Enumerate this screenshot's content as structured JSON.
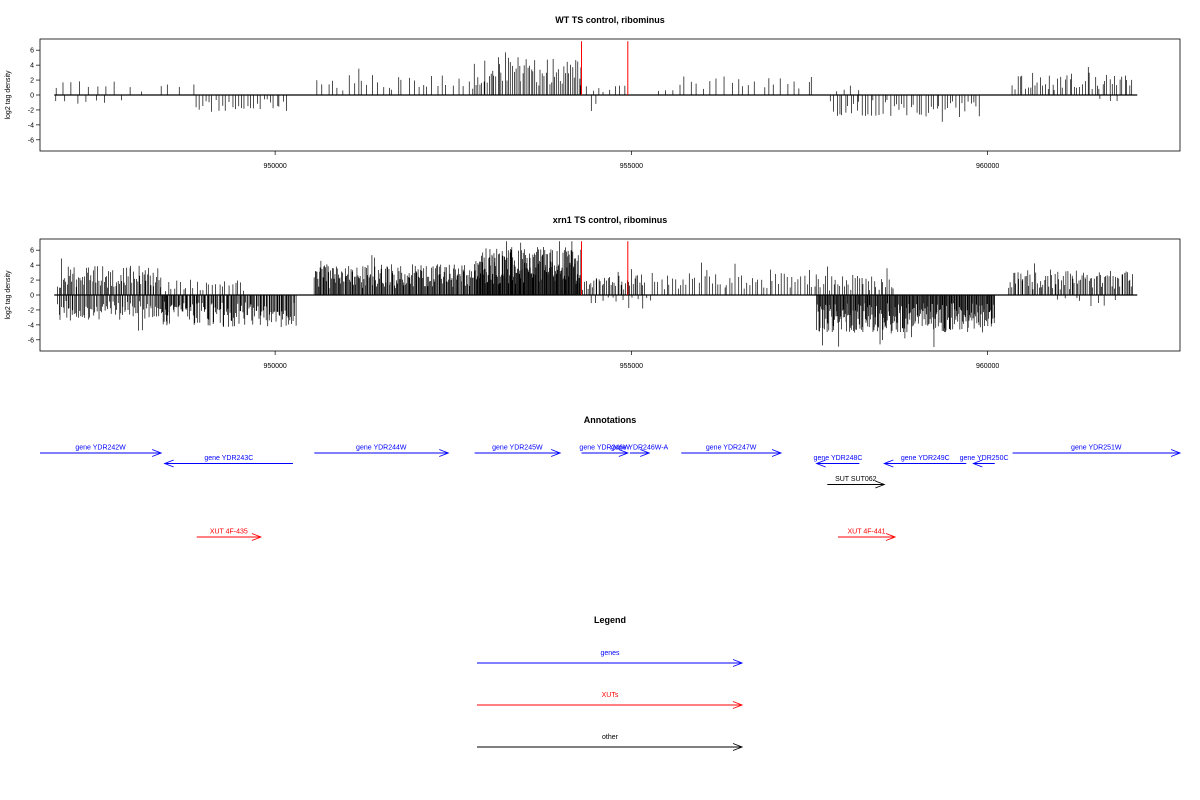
{
  "colors": {
    "genes": "#0000ff",
    "xuts": "#ff0000",
    "other": "#000000",
    "marker": "#ff0000"
  },
  "chart_data": [
    {
      "type": "bar",
      "title": "WT TS control, ribominus",
      "ylabel": "log2 tag density",
      "xlim": [
        946700,
        962700
      ],
      "ylim": [
        -7.5,
        7.5
      ],
      "xticks": [
        950000,
        955000,
        960000
      ],
      "xtick_labels": [
        "950000",
        "955000",
        "960000"
      ],
      "yticks": [
        -6,
        -4,
        -2,
        0,
        2,
        4,
        6
      ],
      "ytick_labels": [
        "-6",
        "-4",
        "-2",
        "0",
        "2",
        "4",
        "6"
      ],
      "baseline": [
        946900,
        962100
      ],
      "marker_lines": [
        954300,
        954950
      ],
      "marker_top": 7.2,
      "density_regions": [
        {
          "start": 946950,
          "end": 947800,
          "sign": 1,
          "step": 110,
          "amp": 1.9,
          "seed": 11
        },
        {
          "start": 946950,
          "end": 947900,
          "sign": -1,
          "step": 140,
          "amp": 1.4,
          "seed": 12
        },
        {
          "start": 948000,
          "end": 949000,
          "sign": 1,
          "step": 170,
          "amp": 1.6,
          "seed": 13
        },
        {
          "start": 948900,
          "end": 950200,
          "sign": -1,
          "step": 45,
          "amp": 2.2,
          "seed": 14
        },
        {
          "start": 950600,
          "end": 952800,
          "sign": 1,
          "step": 70,
          "amp": 2.4,
          "seed": 15
        },
        {
          "start": 952800,
          "end": 954300,
          "sign": 1,
          "step": 25,
          "amp": 4.6,
          "seed": 16
        },
        {
          "start": 954300,
          "end": 955000,
          "sign": 1,
          "step": 80,
          "amp": 1.3,
          "seed": 17
        },
        {
          "start": 954450,
          "end": 954550,
          "sign": -1,
          "step": 60,
          "amp": 2.0,
          "seed": 18
        },
        {
          "start": 955400,
          "end": 957600,
          "sign": 1,
          "step": 90,
          "amp": 2.2,
          "seed": 19
        },
        {
          "start": 957800,
          "end": 959900,
          "sign": -1,
          "step": 40,
          "amp": 2.5,
          "seed": 20
        },
        {
          "start": 957900,
          "end": 958200,
          "sign": 1,
          "step": 90,
          "amp": 1.2,
          "seed": 21
        },
        {
          "start": 960350,
          "end": 962050,
          "sign": 1,
          "step": 35,
          "amp": 2.6,
          "seed": 22
        },
        {
          "start": 961600,
          "end": 961900,
          "sign": -1,
          "step": 120,
          "amp": 0.9,
          "seed": 23
        }
      ]
    },
    {
      "type": "bar",
      "title": "xrn1 TS control, ribominus",
      "ylabel": "log2 tag density",
      "xlim": [
        946700,
        962700
      ],
      "ylim": [
        -7.5,
        7.5
      ],
      "xticks": [
        950000,
        955000,
        960000
      ],
      "xtick_labels": [
        "950000",
        "955000",
        "960000"
      ],
      "yticks": [
        -6,
        -4,
        -2,
        0,
        2,
        4,
        6
      ],
      "ytick_labels": [
        "-6",
        "-4",
        "-2",
        "0",
        "2",
        "4",
        "6"
      ],
      "baseline": [
        946900,
        962100
      ],
      "marker_lines": [
        954300,
        954950
      ],
      "marker_top": 7.2,
      "density_regions": [
        {
          "start": 946950,
          "end": 948400,
          "sign": 1,
          "step": 18,
          "amp": 3.4,
          "seed": 31
        },
        {
          "start": 946950,
          "end": 948500,
          "sign": -1,
          "step": 18,
          "amp": 3.0,
          "seed": 32
        },
        {
          "start": 948400,
          "end": 950300,
          "sign": -1,
          "step": 14,
          "amp": 3.8,
          "seed": 33
        },
        {
          "start": 948400,
          "end": 949600,
          "sign": 1,
          "step": 45,
          "amp": 1.8,
          "seed": 34
        },
        {
          "start": 950550,
          "end": 952800,
          "sign": 1,
          "step": 12,
          "amp": 3.6,
          "seed": 35
        },
        {
          "start": 952800,
          "end": 954300,
          "sign": 1,
          "step": 8,
          "amp": 5.6,
          "seed": 36
        },
        {
          "start": 954300,
          "end": 955200,
          "sign": 1,
          "step": 22,
          "amp": 2.4,
          "seed": 37
        },
        {
          "start": 954450,
          "end": 955300,
          "sign": -1,
          "step": 70,
          "amp": 1.2,
          "seed": 38
        },
        {
          "start": 955300,
          "end": 957600,
          "sign": 1,
          "step": 40,
          "amp": 3.0,
          "seed": 39
        },
        {
          "start": 957600,
          "end": 960100,
          "sign": -1,
          "step": 10,
          "amp": 4.4,
          "seed": 40
        },
        {
          "start": 957600,
          "end": 958700,
          "sign": 1,
          "step": 30,
          "amp": 2.4,
          "seed": 41
        },
        {
          "start": 960300,
          "end": 962050,
          "sign": 1,
          "step": 20,
          "amp": 2.9,
          "seed": 42
        },
        {
          "start": 961000,
          "end": 961800,
          "sign": -1,
          "step": 110,
          "amp": 1.5,
          "seed": 43
        }
      ]
    }
  ],
  "annotations": {
    "title": "Annotations",
    "features": [
      {
        "label": "gene YDR242W",
        "type": "gene",
        "strand": "+",
        "start": 946700,
        "end": 948400,
        "row": 0
      },
      {
        "label": "gene YDR243C",
        "type": "gene",
        "strand": "-",
        "start": 948450,
        "end": 950250,
        "row": 1
      },
      {
        "label": "gene YDR244W",
        "type": "gene",
        "strand": "+",
        "start": 950550,
        "end": 952430,
        "row": 0
      },
      {
        "label": "gene YDR245W",
        "type": "gene",
        "strand": "+",
        "start": 952800,
        "end": 954000,
        "row": 0
      },
      {
        "label": "gene YDR246W",
        "type": "gene",
        "strand": "+",
        "start": 954300,
        "end": 954950,
        "row": 0
      },
      {
        "label": "gene YDR246W-A",
        "type": "gene",
        "strand": "+",
        "start": 954980,
        "end": 955250,
        "row": 0
      },
      {
        "label": "gene YDR247W",
        "type": "gene",
        "strand": "+",
        "start": 955700,
        "end": 957100,
        "row": 0
      },
      {
        "label": "gene YDR248C",
        "type": "gene",
        "strand": "-",
        "start": 957600,
        "end": 958200,
        "row": 1
      },
      {
        "label": "gene YDR249C",
        "type": "gene",
        "strand": "-",
        "start": 958550,
        "end": 959700,
        "row": 1
      },
      {
        "label": "gene YDR250C",
        "type": "gene",
        "strand": "-",
        "start": 959800,
        "end": 960100,
        "row": 1
      },
      {
        "label": "gene YDR251W",
        "type": "gene",
        "strand": "+",
        "start": 960350,
        "end": 962700,
        "row": 0
      },
      {
        "label": "SUT SUT062",
        "type": "other",
        "strand": "+",
        "start": 957750,
        "end": 958550,
        "row": 3
      },
      {
        "label": "XUT 4F-435",
        "type": "xut",
        "strand": "+",
        "start": 948900,
        "end": 949800,
        "row": 8
      },
      {
        "label": "XUT 4F-441",
        "type": "xut",
        "strand": "+",
        "start": 957900,
        "end": 958700,
        "row": 8
      }
    ]
  },
  "legend": {
    "title": "Legend",
    "items": [
      {
        "label": "genes",
        "type": "gene"
      },
      {
        "label": "XUTs",
        "type": "xut"
      },
      {
        "label": "other",
        "type": "other"
      }
    ]
  }
}
